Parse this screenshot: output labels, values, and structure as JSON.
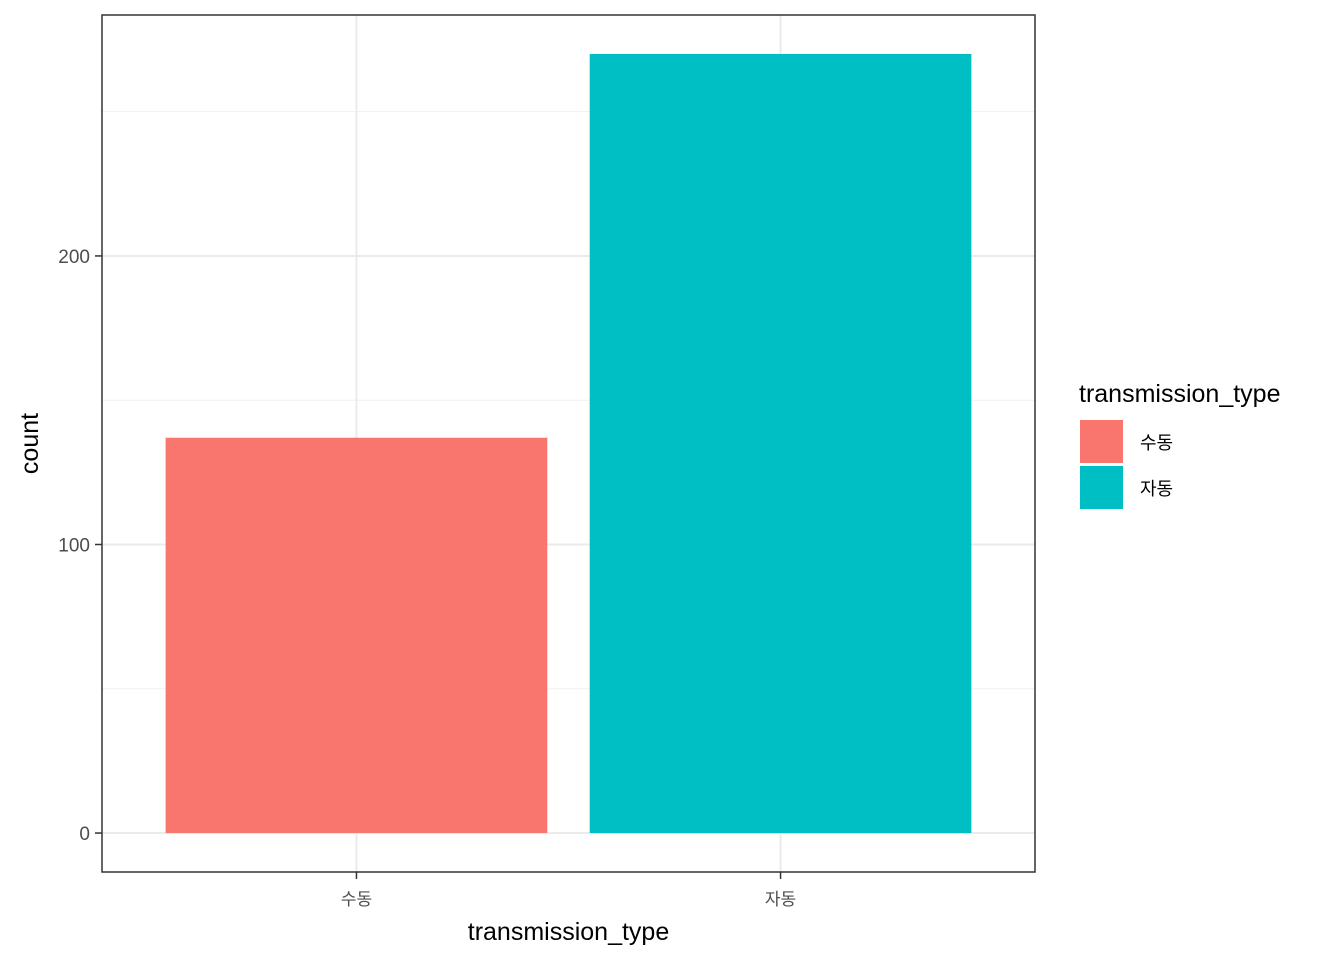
{
  "chart_data": {
    "type": "bar",
    "categories": [
      "수동",
      "자동"
    ],
    "values": [
      137,
      270
    ],
    "colors": [
      "#F8766D",
      "#00BFC4"
    ],
    "xlabel": "transmission_type",
    "ylabel": "count",
    "ylim": [
      -13.5,
      283.5
    ],
    "yticks": [
      0,
      100,
      200
    ],
    "yticks_minor": [
      50,
      150,
      250
    ],
    "grid": true,
    "legend": {
      "title": "transmission_type",
      "placement": "right",
      "entries": [
        "수동",
        "자동"
      ]
    }
  }
}
